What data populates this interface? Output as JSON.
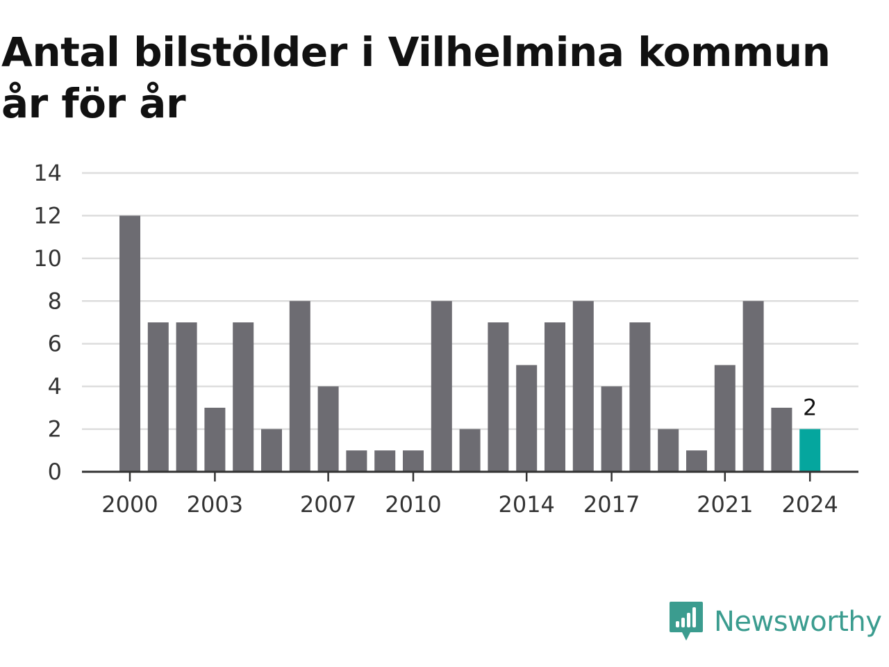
{
  "chart_data": {
    "type": "bar",
    "title": "Antal bilstölder i Vilhelmina kommun år för år",
    "xlabel": "",
    "ylabel": "",
    "categories": [
      2000,
      2001,
      2002,
      2003,
      2004,
      2005,
      2006,
      2007,
      2008,
      2009,
      2010,
      2011,
      2012,
      2013,
      2014,
      2015,
      2016,
      2017,
      2018,
      2019,
      2020,
      2021,
      2022,
      2023,
      2024
    ],
    "values": [
      12,
      7,
      7,
      3,
      7,
      2,
      8,
      4,
      1,
      1,
      1,
      8,
      2,
      7,
      5,
      7,
      8,
      4,
      7,
      2,
      1,
      5,
      8,
      3,
      2
    ],
    "ylim": [
      0,
      14
    ],
    "y_ticks": [
      0,
      2,
      4,
      6,
      8,
      10,
      12,
      14
    ],
    "x_tick_labels": [
      "2000",
      "2003",
      "2007",
      "2010",
      "2014",
      "2017",
      "2021",
      "2024"
    ],
    "highlight": {
      "category": 2024,
      "label": "2"
    },
    "grid": true,
    "legend": "none",
    "colors": {
      "bar": "#6d6c72",
      "highlight": "#05a69e",
      "grid": "#dddddd",
      "axis": "#333333"
    }
  },
  "brand": {
    "name": "Newsworthy",
    "icon": "newsworthy-logo-icon",
    "color": "#3b9c8f"
  }
}
